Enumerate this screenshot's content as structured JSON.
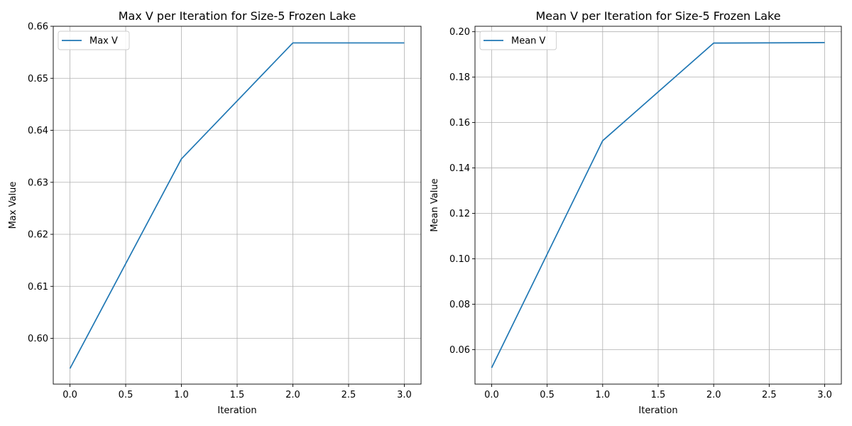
{
  "chart_data": [
    {
      "type": "line",
      "title": "Max V per Iteration for Size-5 Frozen Lake",
      "xlabel": "Iteration",
      "ylabel": "Max Value",
      "x": [
        0,
        1,
        2,
        3
      ],
      "series": [
        {
          "name": "Max V",
          "values": [
            0.5942,
            0.6345,
            0.6568,
            0.6568
          ],
          "color": "#1f77b4"
        }
      ],
      "xlim": [
        -0.15,
        3.15
      ],
      "ylim": [
        0.5912,
        0.66
      ],
      "xticks": [
        0.0,
        0.5,
        1.0,
        1.5,
        2.0,
        2.5,
        3.0
      ],
      "xtick_labels": [
        "0.0",
        "0.5",
        "1.0",
        "1.5",
        "2.0",
        "2.5",
        "3.0"
      ],
      "yticks": [
        0.6,
        0.61,
        0.62,
        0.63,
        0.64,
        0.65,
        0.66
      ],
      "ytick_labels": [
        "0.60",
        "0.61",
        "0.62",
        "0.63",
        "0.64",
        "0.65",
        "0.66"
      ],
      "grid": true,
      "legend": "upper-left"
    },
    {
      "type": "line",
      "title": "Mean V per Iteration for Size-5 Frozen Lake",
      "xlabel": "Iteration",
      "ylabel": "Mean Value",
      "x": [
        0,
        1,
        2,
        3
      ],
      "series": [
        {
          "name": "Mean V",
          "values": [
            0.052,
            0.152,
            0.195,
            0.1952
          ],
          "color": "#1f77b4"
        }
      ],
      "xlim": [
        -0.15,
        3.15
      ],
      "ylim": [
        0.0448,
        0.2024
      ],
      "xticks": [
        0.0,
        0.5,
        1.0,
        1.5,
        2.0,
        2.5,
        3.0
      ],
      "xtick_labels": [
        "0.0",
        "0.5",
        "1.0",
        "1.5",
        "2.0",
        "2.5",
        "3.0"
      ],
      "yticks": [
        0.06,
        0.08,
        0.1,
        0.12,
        0.14,
        0.16,
        0.18,
        0.2
      ],
      "ytick_labels": [
        "0.06",
        "0.08",
        "0.10",
        "0.12",
        "0.14",
        "0.16",
        "0.18",
        "0.20"
      ],
      "grid": true,
      "legend": "upper-left"
    }
  ]
}
